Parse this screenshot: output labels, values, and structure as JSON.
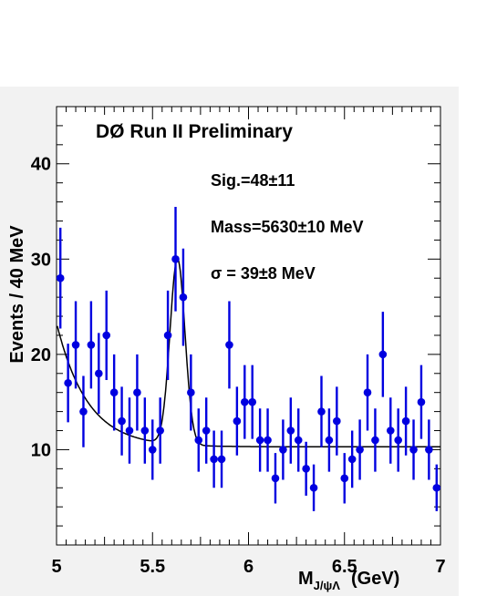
{
  "chart_data": {
    "type": "scatter",
    "experiment_label": "DØ Run II Preliminary",
    "annotations": [
      "Sig.=48±11",
      "Mass=5630±10 MeV",
      "σ = 39±8 MeV"
    ],
    "ylabel": "Events / 40  MeV",
    "xlabel_main": "M",
    "xlabel_sub": "J/ψΛ",
    "xlabel_unit": "(GeV)",
    "xlim": [
      5,
      7
    ],
    "ylim": [
      0,
      46
    ],
    "x_ticks": [
      {
        "value": 5,
        "label": "5"
      },
      {
        "value": 5.5,
        "label": "5.5"
      },
      {
        "value": 6,
        "label": "6"
      },
      {
        "value": 6.5,
        "label": "6.5"
      },
      {
        "value": 7,
        "label": "7"
      }
    ],
    "y_ticks": [
      {
        "value": 10,
        "label": "10"
      },
      {
        "value": 20,
        "label": "20"
      },
      {
        "value": 30,
        "label": "30"
      },
      {
        "value": 40,
        "label": "40"
      }
    ],
    "grid": false,
    "marker_color": "#0000e0",
    "fit_color": "#000000",
    "x": [
      5.02,
      5.06,
      5.1,
      5.14,
      5.18,
      5.22,
      5.26,
      5.3,
      5.34,
      5.38,
      5.42,
      5.46,
      5.5,
      5.54,
      5.58,
      5.62,
      5.66,
      5.7,
      5.74,
      5.78,
      5.82,
      5.86,
      5.9,
      5.94,
      5.98,
      6.02,
      6.06,
      6.1,
      6.14,
      6.18,
      6.22,
      6.26,
      6.3,
      6.34,
      6.38,
      6.42,
      6.46,
      6.5,
      6.54,
      6.58,
      6.62,
      6.66,
      6.7,
      6.74,
      6.78,
      6.82,
      6.86,
      6.9,
      6.94,
      6.98
    ],
    "y": [
      28,
      17,
      21,
      14,
      21,
      18,
      22,
      16,
      13,
      12,
      16,
      12,
      10,
      12,
      22,
      30,
      26,
      16,
      11,
      12,
      9,
      9,
      21,
      13,
      15,
      15,
      11,
      11,
      7,
      10,
      12,
      11,
      8,
      6,
      14,
      11,
      13,
      7,
      9,
      10,
      16,
      11,
      20,
      12,
      11,
      13,
      10,
      15,
      10,
      6
    ]
  }
}
